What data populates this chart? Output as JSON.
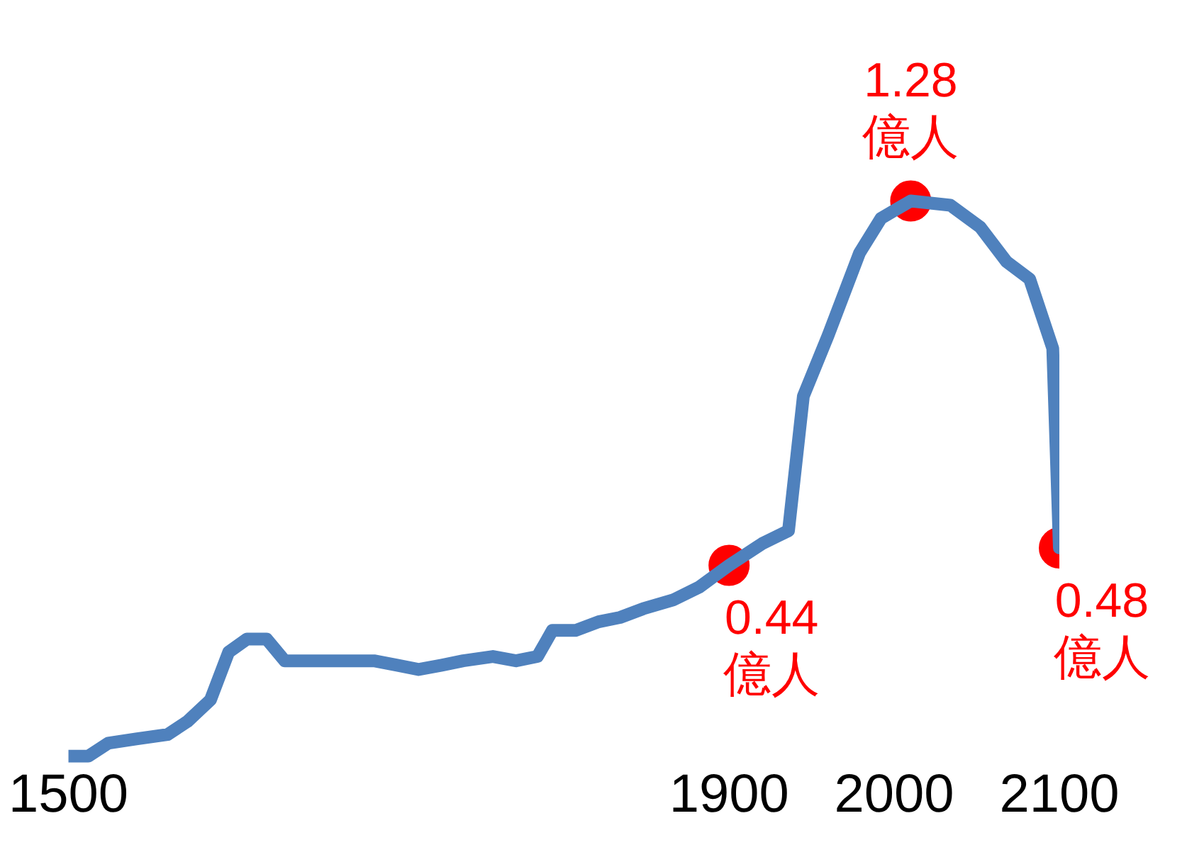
{
  "chart_data": {
    "type": "line",
    "x": [
      1500,
      1512,
      1524,
      1541,
      1560,
      1572,
      1586,
      1597,
      1608,
      1620,
      1631,
      1644,
      1658,
      1672,
      1685,
      1699,
      1712,
      1726,
      1739,
      1757,
      1771,
      1784,
      1793,
      1807,
      1821,
      1834,
      1848,
      1866,
      1882,
      1900,
      1920,
      1936,
      1945,
      1960,
      1979,
      1992,
      2010,
      2034,
      2052,
      2068,
      2082,
      2096,
      2100
    ],
    "series": [
      {
        "color": "#4f81bd",
        "marker": "none",
        "values": [
          0.0,
          0.0,
          0.03,
          0.04,
          0.05,
          0.08,
          0.13,
          0.24,
          0.27,
          0.27,
          0.22,
          0.22,
          0.22,
          0.22,
          0.22,
          0.21,
          0.2,
          0.21,
          0.22,
          0.23,
          0.22,
          0.23,
          0.29,
          0.29,
          0.31,
          0.32,
          0.34,
          0.36,
          0.39,
          0.44,
          0.49,
          0.52,
          0.83,
          0.97,
          1.16,
          1.24,
          1.28,
          1.27,
          1.22,
          1.14,
          1.1,
          0.94,
          0.48
        ]
      },
      {
        "type": "scatter",
        "color": "#ff0000",
        "marker": "circle",
        "x": [
          1900,
          2010,
          2100
        ],
        "values": [
          0.44,
          1.28,
          0.48
        ],
        "value_labels": [
          "0.44 億人",
          "1.28 億人",
          "0.48 億人"
        ]
      }
    ],
    "xlim": [
      1500,
      2100
    ],
    "xticks": [
      1500,
      1900,
      2000,
      2100
    ],
    "tick_labels": "x",
    "grid": false,
    "legend": false
  }
}
